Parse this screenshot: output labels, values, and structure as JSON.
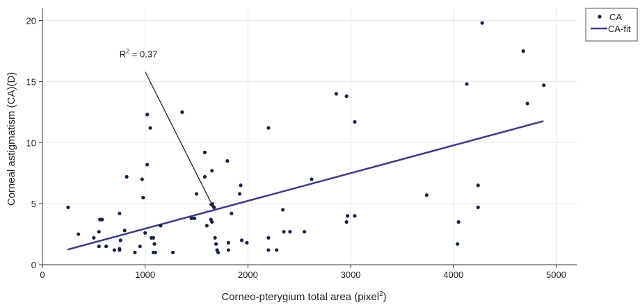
{
  "chart_data": {
    "type": "scatter",
    "xlabel_main": "Corneo-pterygium total area (pixel",
    "xlabel_sup": "2",
    "xlabel_end": ")",
    "ylabel": "Corneal astigmatism (CA)(D)",
    "xlim": [
      0,
      5200
    ],
    "ylim": [
      0,
      21
    ],
    "xticks": [
      0,
      1000,
      2000,
      3000,
      4000,
      5000
    ],
    "yticks": [
      0,
      5,
      10,
      15,
      20
    ],
    "grid": true,
    "legend_position": "top-right",
    "colors": {
      "points": "#14224a",
      "fit": "#3d3a8a",
      "grid": "#e6e6e6",
      "axis": "#333333"
    },
    "series": [
      {
        "name": "CA",
        "kind": "scatter",
        "points": [
          [
            250,
            4.7
          ],
          [
            350,
            2.5
          ],
          [
            500,
            2.2
          ],
          [
            550,
            1.5
          ],
          [
            550,
            2.7
          ],
          [
            560,
            3.7
          ],
          [
            580,
            3.7
          ],
          [
            620,
            1.5
          ],
          [
            700,
            1.2
          ],
          [
            750,
            1.3
          ],
          [
            750,
            1.2
          ],
          [
            750,
            4.2
          ],
          [
            760,
            2.0
          ],
          [
            800,
            2.8
          ],
          [
            820,
            7.2
          ],
          [
            900,
            1.0
          ],
          [
            950,
            1.5
          ],
          [
            970,
            7.0
          ],
          [
            980,
            5.5
          ],
          [
            1000,
            2.6
          ],
          [
            1020,
            8.2
          ],
          [
            1020,
            12.3
          ],
          [
            1050,
            11.2
          ],
          [
            1060,
            2.2
          ],
          [
            1080,
            1.0
          ],
          [
            1080,
            2.2
          ],
          [
            1090,
            1.7
          ],
          [
            1100,
            1.0
          ],
          [
            1150,
            3.2
          ],
          [
            1270,
            1.0
          ],
          [
            1360,
            12.5
          ],
          [
            1450,
            3.8
          ],
          [
            1480,
            3.8
          ],
          [
            1500,
            5.8
          ],
          [
            1580,
            9.2
          ],
          [
            1580,
            7.2
          ],
          [
            1600,
            3.2
          ],
          [
            1640,
            3.7
          ],
          [
            1650,
            7.7
          ],
          [
            1650,
            3.5
          ],
          [
            1670,
            4.7
          ],
          [
            1680,
            2.2
          ],
          [
            1690,
            1.7
          ],
          [
            1700,
            1.2
          ],
          [
            1710,
            1.0
          ],
          [
            1800,
            8.5
          ],
          [
            1810,
            1.8
          ],
          [
            1810,
            1.2
          ],
          [
            1840,
            4.2
          ],
          [
            1920,
            5.8
          ],
          [
            1930,
            6.5
          ],
          [
            1940,
            2.0
          ],
          [
            1990,
            1.8
          ],
          [
            2200,
            11.2
          ],
          [
            2200,
            2.2
          ],
          [
            2200,
            1.2
          ],
          [
            2280,
            1.2
          ],
          [
            2340,
            4.5
          ],
          [
            2350,
            2.7
          ],
          [
            2410,
            2.7
          ],
          [
            2550,
            2.7
          ],
          [
            2620,
            7.0
          ],
          [
            2860,
            14.0
          ],
          [
            2960,
            13.8
          ],
          [
            2960,
            3.5
          ],
          [
            2970,
            4.0
          ],
          [
            3040,
            11.7
          ],
          [
            3040,
            4.0
          ],
          [
            3740,
            5.7
          ],
          [
            4040,
            1.7
          ],
          [
            4050,
            3.5
          ],
          [
            4130,
            14.8
          ],
          [
            4240,
            6.5
          ],
          [
            4240,
            4.7
          ],
          [
            4280,
            19.8
          ],
          [
            4680,
            17.5
          ],
          [
            4720,
            13.2
          ],
          [
            4880,
            14.7
          ]
        ]
      },
      {
        "name": "CA-fit",
        "kind": "line",
        "points": [
          [
            250,
            1.25
          ],
          [
            4870,
            11.75
          ]
        ]
      }
    ],
    "annotation": {
      "text_main": "R",
      "text_sup": "2",
      "text_end": " = 0.37",
      "label_at": [
        750,
        17.0
      ],
      "arrow_from": [
        1000,
        15.8
      ],
      "arrow_to": [
        1670,
        4.6
      ]
    }
  }
}
